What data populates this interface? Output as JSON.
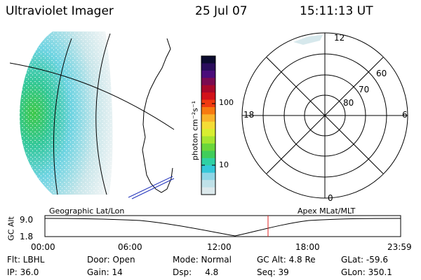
{
  "header": {
    "instrument": "Ultraviolet Imager",
    "date": "25 Jul 07",
    "time": "15:11:13 UT"
  },
  "colorbar": {
    "units": "photon cm⁻²s⁻¹",
    "tick_labels": [
      "100",
      "10"
    ],
    "colors": [
      "#0b0b2e",
      "#2a0d5c",
      "#4a0c7a",
      "#7a0a50",
      "#a8082a",
      "#d2121a",
      "#f03a10",
      "#f77a10",
      "#f9b22a",
      "#f4dc35",
      "#d8ee30",
      "#a6e530",
      "#6ad63a",
      "#40cd5a",
      "#2fd0a4",
      "#35c8d9",
      "#8fd6e6",
      "#bfe1e8",
      "#dce9ec"
    ]
  },
  "polar_plot": {
    "mlt_labels": {
      "top": "12",
      "left": "18",
      "right": "6",
      "bottom": "0"
    },
    "lat_labels": [
      "60",
      "70",
      "80"
    ]
  },
  "altitude_panel": {
    "left_title": "Geographic Lat/Lon",
    "right_title": "Apex MLat/MLT",
    "axis_label": "GC Alt",
    "y_ticks": [
      "9.0",
      "1.8"
    ],
    "x_ticks": [
      "00:00",
      "06:00",
      "12:00",
      "18:00",
      "23:59"
    ],
    "marker_color": "#e02020"
  },
  "status": {
    "flt": "Flt: LBHL",
    "ip": "IP: 36.0",
    "door": "Door: Open",
    "gain": "Gain: 14",
    "mode": "Mode: Normal",
    "dsp": "Dsp:     4.8",
    "gcalt": "GC Alt: 4.8 Re",
    "seq": "Seq: 39",
    "glat": "GLat: -59.6",
    "glon": "GLon: 350.1"
  }
}
